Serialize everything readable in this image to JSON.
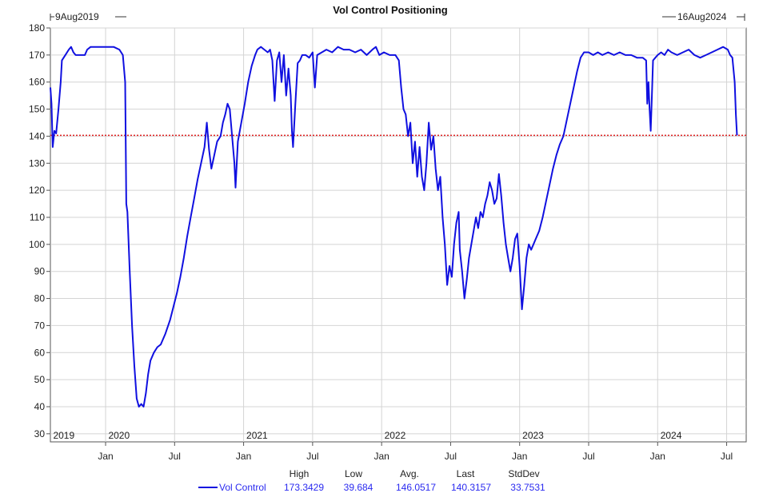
{
  "chart_data": {
    "type": "line",
    "title": "Vol Control Positioning",
    "start_label": "9Aug2019",
    "end_label": "16Aug2024",
    "ylim": [
      27,
      180
    ],
    "yticks": [
      30,
      40,
      50,
      60,
      70,
      80,
      90,
      100,
      110,
      120,
      130,
      140,
      150,
      160,
      170,
      180
    ],
    "xlim": [
      0,
      60.5
    ],
    "month_ticks": [
      {
        "label": "Jan",
        "x": 4.8
      },
      {
        "label": "Jul",
        "x": 10.8
      },
      {
        "label": "Jan",
        "x": 16.8
      },
      {
        "label": "Jul",
        "x": 22.8
      },
      {
        "label": "Jan",
        "x": 28.8
      },
      {
        "label": "Jul",
        "x": 34.8
      },
      {
        "label": "Jan",
        "x": 40.8
      },
      {
        "label": "Jul",
        "x": 46.8
      },
      {
        "label": "Jan",
        "x": 52.8
      },
      {
        "label": "Jul",
        "x": 58.8
      }
    ],
    "year_labels": [
      {
        "label": "2019",
        "x": 0.1
      },
      {
        "label": "2020",
        "x": 4.9
      },
      {
        "label": "2021",
        "x": 16.9
      },
      {
        "label": "2022",
        "x": 28.9
      },
      {
        "label": "2023",
        "x": 40.9
      },
      {
        "label": "2024",
        "x": 52.9
      }
    ],
    "reference_line": {
      "value": 140.3157,
      "color": "#e02020"
    },
    "grid": true,
    "series": [
      {
        "name": "Vol Control",
        "color": "#1010e0",
        "points": [
          [
            0.0,
            158
          ],
          [
            0.1,
            152
          ],
          [
            0.2,
            136
          ],
          [
            0.35,
            142
          ],
          [
            0.5,
            141
          ],
          [
            0.7,
            150
          ],
          [
            0.9,
            160
          ],
          [
            1.0,
            168
          ],
          [
            1.3,
            170
          ],
          [
            1.6,
            172
          ],
          [
            1.8,
            173
          ],
          [
            2.0,
            171
          ],
          [
            2.2,
            170
          ],
          [
            2.6,
            170
          ],
          [
            3.0,
            170
          ],
          [
            3.2,
            172
          ],
          [
            3.5,
            173
          ],
          [
            4.0,
            173
          ],
          [
            4.5,
            173
          ],
          [
            5.0,
            173
          ],
          [
            5.5,
            173
          ],
          [
            6.0,
            172
          ],
          [
            6.3,
            170
          ],
          [
            6.5,
            160
          ],
          [
            6.6,
            115
          ],
          [
            6.7,
            112
          ],
          [
            6.9,
            90
          ],
          [
            7.1,
            70
          ],
          [
            7.3,
            55
          ],
          [
            7.5,
            43
          ],
          [
            7.7,
            40
          ],
          [
            7.9,
            41
          ],
          [
            8.1,
            40
          ],
          [
            8.3,
            45
          ],
          [
            8.5,
            52
          ],
          [
            8.7,
            57
          ],
          [
            9.0,
            60
          ],
          [
            9.3,
            62
          ],
          [
            9.6,
            63
          ],
          [
            10.0,
            67
          ],
          [
            10.4,
            72
          ],
          [
            10.7,
            77
          ],
          [
            11.0,
            82
          ],
          [
            11.3,
            88
          ],
          [
            11.6,
            95
          ],
          [
            11.9,
            103
          ],
          [
            12.2,
            110
          ],
          [
            12.5,
            117
          ],
          [
            12.8,
            124
          ],
          [
            13.1,
            130
          ],
          [
            13.4,
            136
          ],
          [
            13.6,
            145
          ],
          [
            13.8,
            135
          ],
          [
            14.0,
            128
          ],
          [
            14.2,
            132
          ],
          [
            14.5,
            138
          ],
          [
            14.8,
            140
          ],
          [
            15.0,
            145
          ],
          [
            15.2,
            148
          ],
          [
            15.4,
            152
          ],
          [
            15.6,
            150
          ],
          [
            15.8,
            140
          ],
          [
            16.0,
            130
          ],
          [
            16.1,
            121
          ],
          [
            16.3,
            138
          ],
          [
            16.6,
            145
          ],
          [
            16.9,
            152
          ],
          [
            17.2,
            160
          ],
          [
            17.5,
            166
          ],
          [
            17.8,
            170
          ],
          [
            18.0,
            172
          ],
          [
            18.3,
            173
          ],
          [
            18.6,
            172
          ],
          [
            18.9,
            171
          ],
          [
            19.1,
            172
          ],
          [
            19.3,
            168
          ],
          [
            19.5,
            153
          ],
          [
            19.7,
            168
          ],
          [
            19.9,
            171
          ],
          [
            20.1,
            160
          ],
          [
            20.3,
            170
          ],
          [
            20.5,
            155
          ],
          [
            20.7,
            165
          ],
          [
            20.9,
            155
          ],
          [
            21.0,
            142
          ],
          [
            21.1,
            136
          ],
          [
            21.3,
            152
          ],
          [
            21.5,
            167
          ],
          [
            21.7,
            168
          ],
          [
            21.9,
            170
          ],
          [
            22.2,
            170
          ],
          [
            22.5,
            169
          ],
          [
            22.8,
            171
          ],
          [
            23.0,
            158
          ],
          [
            23.2,
            170
          ],
          [
            23.6,
            171
          ],
          [
            24.0,
            172
          ],
          [
            24.5,
            171
          ],
          [
            25.0,
            173
          ],
          [
            25.5,
            172
          ],
          [
            26.0,
            172
          ],
          [
            26.5,
            171
          ],
          [
            27.0,
            172
          ],
          [
            27.5,
            170
          ],
          [
            28.0,
            172
          ],
          [
            28.3,
            173
          ],
          [
            28.6,
            170
          ],
          [
            29.0,
            171
          ],
          [
            29.5,
            170
          ],
          [
            30.0,
            170
          ],
          [
            30.3,
            168
          ],
          [
            30.5,
            158
          ],
          [
            30.7,
            150
          ],
          [
            30.9,
            148
          ],
          [
            31.1,
            140
          ],
          [
            31.3,
            145
          ],
          [
            31.5,
            130
          ],
          [
            31.7,
            138
          ],
          [
            31.9,
            125
          ],
          [
            32.1,
            136
          ],
          [
            32.3,
            125
          ],
          [
            32.5,
            120
          ],
          [
            32.7,
            130
          ],
          [
            32.9,
            145
          ],
          [
            33.1,
            135
          ],
          [
            33.3,
            140
          ],
          [
            33.5,
            128
          ],
          [
            33.7,
            120
          ],
          [
            33.9,
            125
          ],
          [
            34.1,
            110
          ],
          [
            34.3,
            100
          ],
          [
            34.5,
            85
          ],
          [
            34.7,
            92
          ],
          [
            34.9,
            88
          ],
          [
            35.1,
            100
          ],
          [
            35.3,
            108
          ],
          [
            35.5,
            112
          ],
          [
            35.6,
            98
          ],
          [
            35.8,
            90
          ],
          [
            36.0,
            80
          ],
          [
            36.2,
            87
          ],
          [
            36.4,
            95
          ],
          [
            36.6,
            100
          ],
          [
            36.8,
            105
          ],
          [
            37.0,
            110
          ],
          [
            37.2,
            106
          ],
          [
            37.4,
            112
          ],
          [
            37.6,
            110
          ],
          [
            37.8,
            115
          ],
          [
            38.0,
            118
          ],
          [
            38.2,
            123
          ],
          [
            38.4,
            120
          ],
          [
            38.6,
            115
          ],
          [
            38.8,
            117
          ],
          [
            39.0,
            126
          ],
          [
            39.2,
            118
          ],
          [
            39.4,
            108
          ],
          [
            39.6,
            100
          ],
          [
            39.8,
            95
          ],
          [
            40.0,
            90
          ],
          [
            40.2,
            95
          ],
          [
            40.4,
            102
          ],
          [
            40.6,
            104
          ],
          [
            40.8,
            92
          ],
          [
            41.0,
            76
          ],
          [
            41.2,
            85
          ],
          [
            41.4,
            95
          ],
          [
            41.6,
            100
          ],
          [
            41.8,
            98
          ],
          [
            42.0,
            100
          ],
          [
            42.2,
            102
          ],
          [
            42.5,
            105
          ],
          [
            42.8,
            110
          ],
          [
            43.1,
            116
          ],
          [
            43.4,
            122
          ],
          [
            43.7,
            128
          ],
          [
            44.0,
            133
          ],
          [
            44.3,
            137
          ],
          [
            44.6,
            140
          ],
          [
            44.9,
            146
          ],
          [
            45.2,
            152
          ],
          [
            45.5,
            158
          ],
          [
            45.8,
            164
          ],
          [
            46.1,
            169
          ],
          [
            46.4,
            171
          ],
          [
            46.8,
            171
          ],
          [
            47.2,
            170
          ],
          [
            47.6,
            171
          ],
          [
            48.0,
            170
          ],
          [
            48.5,
            171
          ],
          [
            49.0,
            170
          ],
          [
            49.5,
            171
          ],
          [
            50.0,
            170
          ],
          [
            50.5,
            170
          ],
          [
            51.0,
            169
          ],
          [
            51.5,
            169
          ],
          [
            51.8,
            168
          ],
          [
            51.9,
            152
          ],
          [
            52.0,
            160
          ],
          [
            52.1,
            150
          ],
          [
            52.2,
            142
          ],
          [
            52.3,
            155
          ],
          [
            52.4,
            168
          ],
          [
            52.6,
            169
          ],
          [
            52.8,
            170
          ],
          [
            53.1,
            171
          ],
          [
            53.4,
            170
          ],
          [
            53.7,
            172
          ],
          [
            54.0,
            171
          ],
          [
            54.5,
            170
          ],
          [
            55.0,
            171
          ],
          [
            55.5,
            172
          ],
          [
            56.0,
            170
          ],
          [
            56.5,
            169
          ],
          [
            57.0,
            170
          ],
          [
            57.5,
            171
          ],
          [
            58.0,
            172
          ],
          [
            58.5,
            173
          ],
          [
            58.9,
            172
          ],
          [
            59.1,
            170
          ],
          [
            59.3,
            169
          ],
          [
            59.5,
            160
          ],
          [
            59.6,
            148
          ],
          [
            59.7,
            140.3
          ]
        ]
      }
    ],
    "stats": {
      "headers": [
        "High",
        "Low",
        "Avg.",
        "Last",
        "StdDev"
      ],
      "values": [
        "173.3429",
        "39.684",
        "146.0517",
        "140.3157",
        "33.7531"
      ],
      "series_label": "Vol Control"
    }
  }
}
